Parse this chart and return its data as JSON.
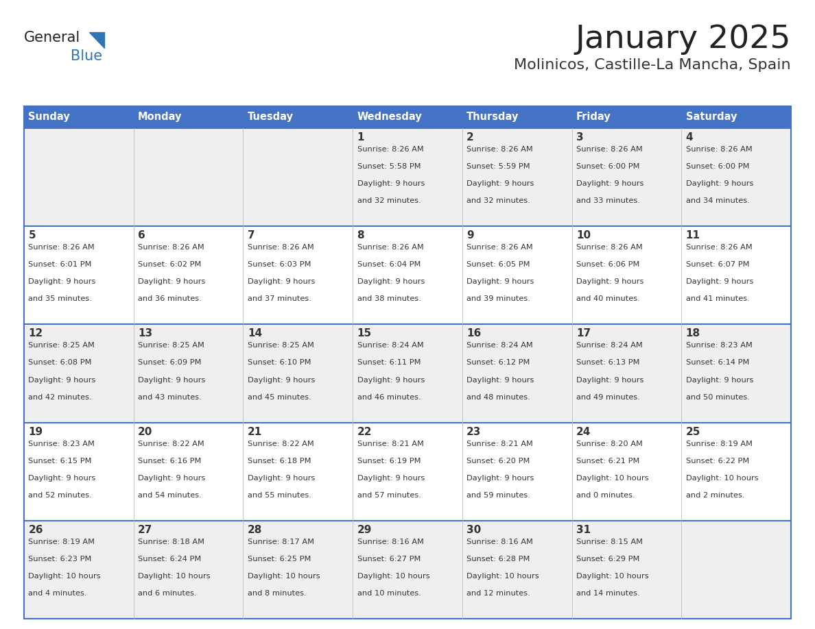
{
  "title": "January 2025",
  "subtitle": "Molinicos, Castille-La Mancha, Spain",
  "days_of_week": [
    "Sunday",
    "Monday",
    "Tuesday",
    "Wednesday",
    "Thursday",
    "Friday",
    "Saturday"
  ],
  "header_bg": "#4472C4",
  "header_text_color": "#FFFFFF",
  "row_bg_light": "#EFEFEF",
  "row_bg_white": "#FFFFFF",
  "cell_text_color": "#333333",
  "border_color": "#4472C4",
  "title_color": "#222222",
  "subtitle_color": "#333333",
  "logo_general_color": "#222222",
  "logo_blue_color": "#2E75B6",
  "calendar": [
    [
      null,
      null,
      null,
      {
        "day": 1,
        "sunrise": "8:26 AM",
        "sunset": "5:58 PM",
        "daylight": "9 hours and 32 minutes."
      },
      {
        "day": 2,
        "sunrise": "8:26 AM",
        "sunset": "5:59 PM",
        "daylight": "9 hours and 32 minutes."
      },
      {
        "day": 3,
        "sunrise": "8:26 AM",
        "sunset": "6:00 PM",
        "daylight": "9 hours and 33 minutes."
      },
      {
        "day": 4,
        "sunrise": "8:26 AM",
        "sunset": "6:00 PM",
        "daylight": "9 hours and 34 minutes."
      }
    ],
    [
      {
        "day": 5,
        "sunrise": "8:26 AM",
        "sunset": "6:01 PM",
        "daylight": "9 hours and 35 minutes."
      },
      {
        "day": 6,
        "sunrise": "8:26 AM",
        "sunset": "6:02 PM",
        "daylight": "9 hours and 36 minutes."
      },
      {
        "day": 7,
        "sunrise": "8:26 AM",
        "sunset": "6:03 PM",
        "daylight": "9 hours and 37 minutes."
      },
      {
        "day": 8,
        "sunrise": "8:26 AM",
        "sunset": "6:04 PM",
        "daylight": "9 hours and 38 minutes."
      },
      {
        "day": 9,
        "sunrise": "8:26 AM",
        "sunset": "6:05 PM",
        "daylight": "9 hours and 39 minutes."
      },
      {
        "day": 10,
        "sunrise": "8:26 AM",
        "sunset": "6:06 PM",
        "daylight": "9 hours and 40 minutes."
      },
      {
        "day": 11,
        "sunrise": "8:26 AM",
        "sunset": "6:07 PM",
        "daylight": "9 hours and 41 minutes."
      }
    ],
    [
      {
        "day": 12,
        "sunrise": "8:25 AM",
        "sunset": "6:08 PM",
        "daylight": "9 hours and 42 minutes."
      },
      {
        "day": 13,
        "sunrise": "8:25 AM",
        "sunset": "6:09 PM",
        "daylight": "9 hours and 43 minutes."
      },
      {
        "day": 14,
        "sunrise": "8:25 AM",
        "sunset": "6:10 PM",
        "daylight": "9 hours and 45 minutes."
      },
      {
        "day": 15,
        "sunrise": "8:24 AM",
        "sunset": "6:11 PM",
        "daylight": "9 hours and 46 minutes."
      },
      {
        "day": 16,
        "sunrise": "8:24 AM",
        "sunset": "6:12 PM",
        "daylight": "9 hours and 48 minutes."
      },
      {
        "day": 17,
        "sunrise": "8:24 AM",
        "sunset": "6:13 PM",
        "daylight": "9 hours and 49 minutes."
      },
      {
        "day": 18,
        "sunrise": "8:23 AM",
        "sunset": "6:14 PM",
        "daylight": "9 hours and 50 minutes."
      }
    ],
    [
      {
        "day": 19,
        "sunrise": "8:23 AM",
        "sunset": "6:15 PM",
        "daylight": "9 hours and 52 minutes."
      },
      {
        "day": 20,
        "sunrise": "8:22 AM",
        "sunset": "6:16 PM",
        "daylight": "9 hours and 54 minutes."
      },
      {
        "day": 21,
        "sunrise": "8:22 AM",
        "sunset": "6:18 PM",
        "daylight": "9 hours and 55 minutes."
      },
      {
        "day": 22,
        "sunrise": "8:21 AM",
        "sunset": "6:19 PM",
        "daylight": "9 hours and 57 minutes."
      },
      {
        "day": 23,
        "sunrise": "8:21 AM",
        "sunset": "6:20 PM",
        "daylight": "9 hours and 59 minutes."
      },
      {
        "day": 24,
        "sunrise": "8:20 AM",
        "sunset": "6:21 PM",
        "daylight": "10 hours and 0 minutes."
      },
      {
        "day": 25,
        "sunrise": "8:19 AM",
        "sunset": "6:22 PM",
        "daylight": "10 hours and 2 minutes."
      }
    ],
    [
      {
        "day": 26,
        "sunrise": "8:19 AM",
        "sunset": "6:23 PM",
        "daylight": "10 hours and 4 minutes."
      },
      {
        "day": 27,
        "sunrise": "8:18 AM",
        "sunset": "6:24 PM",
        "daylight": "10 hours and 6 minutes."
      },
      {
        "day": 28,
        "sunrise": "8:17 AM",
        "sunset": "6:25 PM",
        "daylight": "10 hours and 8 minutes."
      },
      {
        "day": 29,
        "sunrise": "8:16 AM",
        "sunset": "6:27 PM",
        "daylight": "10 hours and 10 minutes."
      },
      {
        "day": 30,
        "sunrise": "8:16 AM",
        "sunset": "6:28 PM",
        "daylight": "10 hours and 12 minutes."
      },
      {
        "day": 31,
        "sunrise": "8:15 AM",
        "sunset": "6:29 PM",
        "daylight": "10 hours and 14 minutes."
      },
      null
    ]
  ]
}
